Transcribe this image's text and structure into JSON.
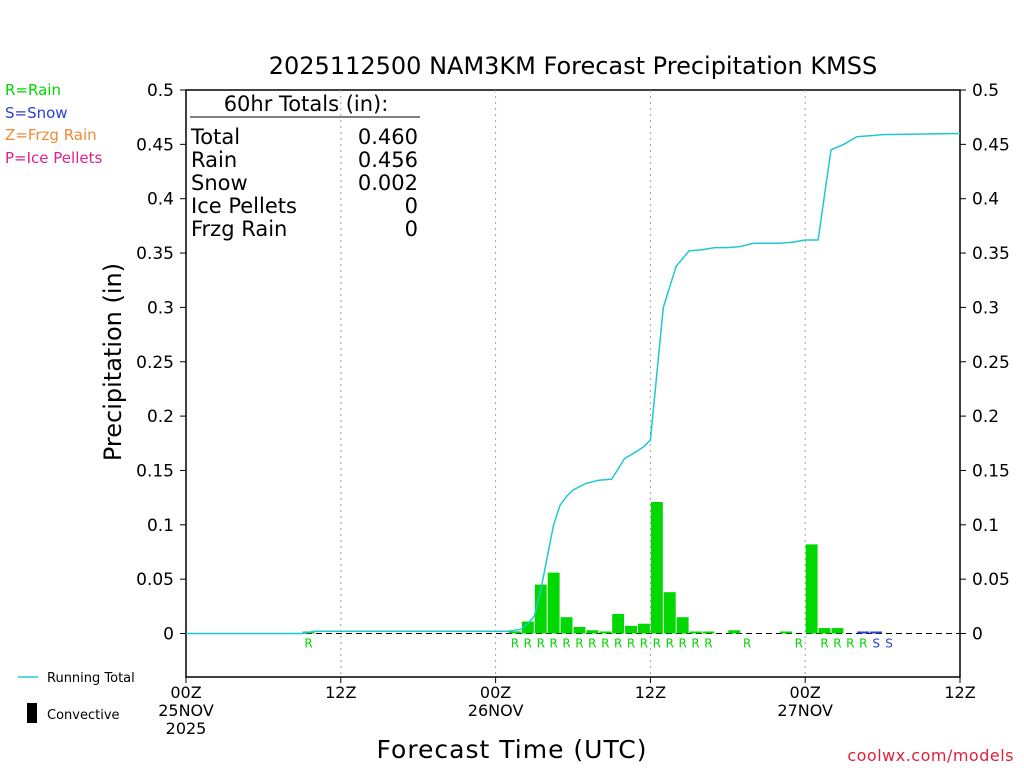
{
  "colors": {
    "rain": "#00d800",
    "snow": "#2a3fd6",
    "frzg": "#f08a30",
    "ice": "#e0208c",
    "running": "#20c8d0",
    "axis": "#000000",
    "grid": "#a0a0a0",
    "credit": "#e0203c"
  },
  "legend": {
    "rain": "R=Rain",
    "snow": "S=Snow",
    "frzg": "Z=Frzg Rain",
    "ice": "P=Ice Pellets",
    "running_total": "Running Total",
    "convective": "Convective"
  },
  "totals": {
    "header": "60hr Totals (in):",
    "rows": [
      {
        "label": "Total",
        "value": "0.460"
      },
      {
        "label": "Rain",
        "value": "0.456"
      },
      {
        "label": "Snow",
        "value": "0.002"
      },
      {
        "label": "Ice Pellets",
        "value": "0"
      },
      {
        "label": "Frzg Rain",
        "value": "0"
      }
    ]
  },
  "credit": "coolwx.com/models",
  "chart_data": {
    "type": "bar",
    "title": "2025112500 NAM3KM Forecast Precipitation KMSS",
    "xlabel": "Forecast Time (UTC)",
    "ylabel": "Precipitation (in)",
    "ylim": [
      -0.04,
      0.5
    ],
    "xlim_hours": [
      0,
      60
    ],
    "yticks": [
      0,
      0.05,
      0.1,
      0.15,
      0.2,
      0.25,
      0.3,
      0.35,
      0.4,
      0.45,
      0.5
    ],
    "ytick_labels": [
      "0",
      "0.05",
      "0.1",
      "0.15",
      "0.2",
      "0.25",
      "0.3",
      "0.35",
      "0.4",
      "0.45",
      "0.5"
    ],
    "xticks": [
      {
        "hour": 0,
        "lines": [
          "00Z",
          "25NOV",
          "2025"
        ]
      },
      {
        "hour": 12,
        "lines": [
          "12Z"
        ]
      },
      {
        "hour": 24,
        "lines": [
          "00Z",
          "26NOV"
        ]
      },
      {
        "hour": 36,
        "lines": [
          "12Z"
        ]
      },
      {
        "hour": 48,
        "lines": [
          "00Z",
          "27NOV"
        ]
      },
      {
        "hour": 60,
        "lines": [
          "12Z"
        ]
      }
    ],
    "grid_hours": [
      12,
      24,
      36,
      48
    ],
    "hourly_bars": [
      {
        "hour": 10,
        "value": 0.001,
        "type": "rain"
      },
      {
        "hour": 26,
        "value": 0.002,
        "type": "rain"
      },
      {
        "hour": 27,
        "value": 0.011,
        "type": "rain"
      },
      {
        "hour": 28,
        "value": 0.045,
        "type": "rain"
      },
      {
        "hour": 29,
        "value": 0.056,
        "type": "rain"
      },
      {
        "hour": 30,
        "value": 0.015,
        "type": "rain"
      },
      {
        "hour": 31,
        "value": 0.006,
        "type": "rain"
      },
      {
        "hour": 32,
        "value": 0.003,
        "type": "rain"
      },
      {
        "hour": 33,
        "value": 0.001,
        "type": "rain"
      },
      {
        "hour": 34,
        "value": 0.018,
        "type": "rain"
      },
      {
        "hour": 35,
        "value": 0.007,
        "type": "rain"
      },
      {
        "hour": 36,
        "value": 0.009,
        "type": "rain"
      },
      {
        "hour": 37,
        "value": 0.121,
        "type": "rain"
      },
      {
        "hour": 38,
        "value": 0.038,
        "type": "rain"
      },
      {
        "hour": 39,
        "value": 0.015,
        "type": "rain"
      },
      {
        "hour": 40,
        "value": 0.001,
        "type": "rain"
      },
      {
        "hour": 41,
        "value": 0.001,
        "type": "rain"
      },
      {
        "hour": 43,
        "value": 0.003,
        "type": "rain"
      },
      {
        "hour": 47,
        "value": 0.001,
        "type": "rain"
      },
      {
        "hour": 49,
        "value": 0.082,
        "type": "rain"
      },
      {
        "hour": 50,
        "value": 0.005,
        "type": "rain"
      },
      {
        "hour": 51,
        "value": 0.005,
        "type": "rain"
      },
      {
        "hour": 53,
        "value": 0.001,
        "type": "snow"
      },
      {
        "hour": 54,
        "value": 0.001,
        "type": "snow"
      }
    ],
    "ptype_markers": [
      {
        "hour": 9.5,
        "text": "R",
        "type": "rain"
      },
      {
        "hour": 25.5,
        "text": "R",
        "type": "rain"
      },
      {
        "hour": 26.5,
        "text": "R",
        "type": "rain"
      },
      {
        "hour": 27.5,
        "text": "R",
        "type": "rain"
      },
      {
        "hour": 28.5,
        "text": "R",
        "type": "rain"
      },
      {
        "hour": 29.5,
        "text": "R",
        "type": "rain"
      },
      {
        "hour": 30.5,
        "text": "R",
        "type": "rain"
      },
      {
        "hour": 31.5,
        "text": "R",
        "type": "rain"
      },
      {
        "hour": 32.5,
        "text": "R",
        "type": "rain"
      },
      {
        "hour": 33.5,
        "text": "R",
        "type": "rain"
      },
      {
        "hour": 34.5,
        "text": "R",
        "type": "rain"
      },
      {
        "hour": 35.5,
        "text": "R",
        "type": "rain"
      },
      {
        "hour": 36.5,
        "text": "R",
        "type": "rain"
      },
      {
        "hour": 37.5,
        "text": "R",
        "type": "rain"
      },
      {
        "hour": 38.5,
        "text": "R",
        "type": "rain"
      },
      {
        "hour": 39.5,
        "text": "R",
        "type": "rain"
      },
      {
        "hour": 40.5,
        "text": "R",
        "type": "rain"
      },
      {
        "hour": 43.5,
        "text": "R",
        "type": "rain"
      },
      {
        "hour": 47.5,
        "text": "R",
        "type": "rain"
      },
      {
        "hour": 49.5,
        "text": "R",
        "type": "rain"
      },
      {
        "hour": 50.5,
        "text": "R",
        "type": "rain"
      },
      {
        "hour": 51.5,
        "text": "R",
        "type": "rain"
      },
      {
        "hour": 52.5,
        "text": "R",
        "type": "rain"
      },
      {
        "hour": 53.5,
        "text": "S",
        "type": "snow"
      },
      {
        "hour": 54.5,
        "text": "S",
        "type": "snow"
      }
    ],
    "running_total": {
      "hours": [
        0,
        9,
        10,
        25,
        26,
        26.5,
        27,
        27.5,
        28,
        28.5,
        29,
        29.5,
        30,
        31,
        32,
        33,
        34,
        35,
        35.5,
        36,
        37,
        38,
        39,
        40,
        41,
        42,
        43,
        44,
        45,
        46,
        47,
        48,
        49,
        50,
        51,
        52,
        53,
        54,
        60
      ],
      "values": [
        0,
        0,
        0.002,
        0.002,
        0.004,
        0.009,
        0.016,
        0.04,
        0.07,
        0.1,
        0.118,
        0.126,
        0.132,
        0.138,
        0.141,
        0.142,
        0.161,
        0.168,
        0.172,
        0.178,
        0.3,
        0.338,
        0.352,
        0.353,
        0.355,
        0.355,
        0.356,
        0.359,
        0.359,
        0.359,
        0.36,
        0.362,
        0.362,
        0.445,
        0.45,
        0.457,
        0.458,
        0.459,
        0.46
      ]
    }
  }
}
